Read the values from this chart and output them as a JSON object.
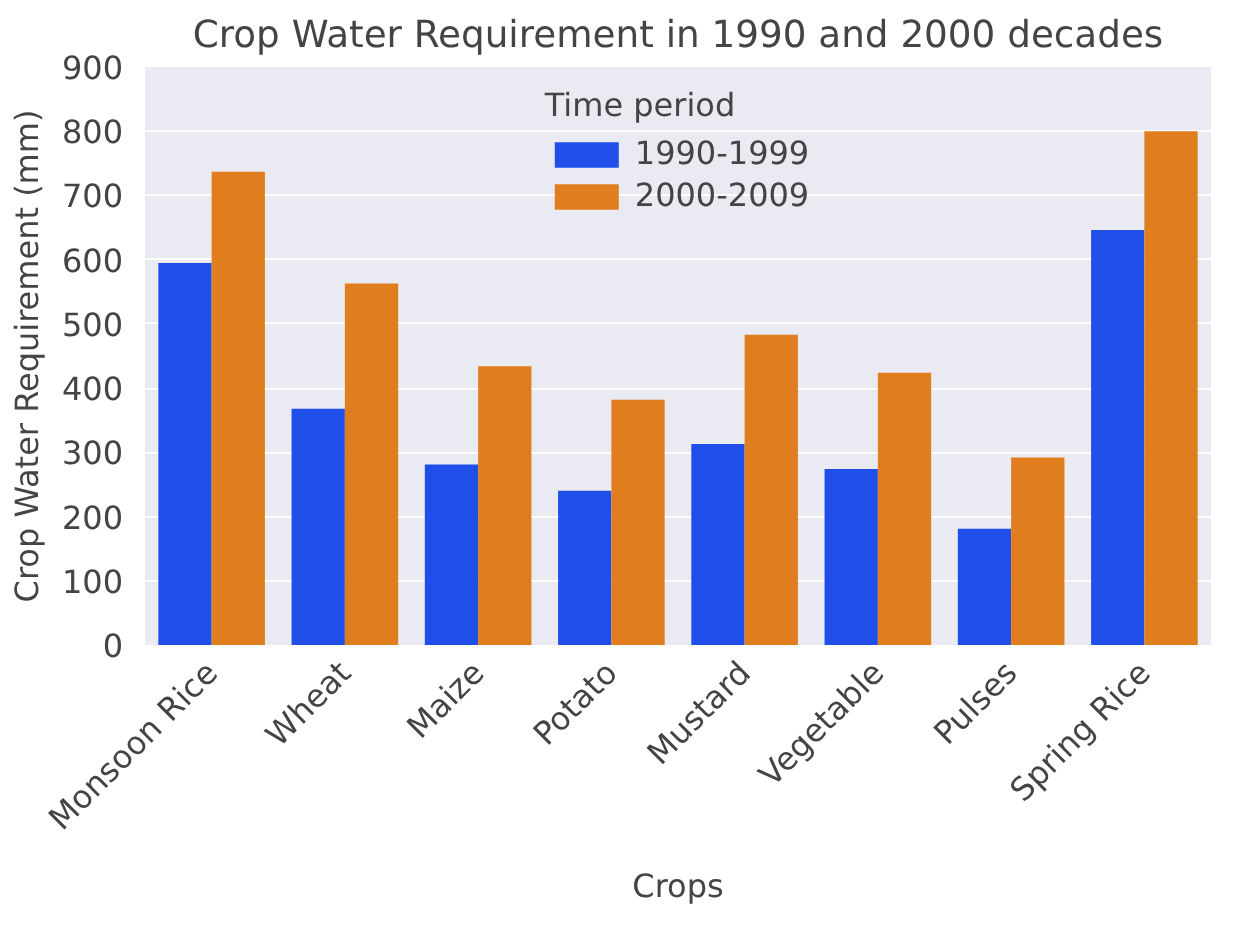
{
  "chart_data": {
    "type": "bar",
    "title": "Crop Water Requirement in 1990 and 2000 decades",
    "xlabel": "Crops",
    "ylabel": "Crop Water Requirement (mm)",
    "legend_title": "Time period",
    "categories": [
      "Monsoon Rice",
      "Wheat",
      "Maize",
      "Potato",
      "Mustard",
      "Vegetable",
      "Pulses",
      "Spring Rice"
    ],
    "series": [
      {
        "name": "1990-1999",
        "color": "#1f4fe8",
        "values": [
          595,
          368,
          281,
          240,
          313,
          274,
          181,
          646
        ]
      },
      {
        "name": "2000-2009",
        "color": "#e07d1f",
        "values": [
          737,
          563,
          434,
          382,
          483,
          424,
          292,
          800
        ]
      }
    ],
    "ylim": [
      0,
      900
    ],
    "yticks": [
      0,
      100,
      200,
      300,
      400,
      500,
      600,
      700,
      800,
      900
    ],
    "grid": "y",
    "legend": "top"
  }
}
